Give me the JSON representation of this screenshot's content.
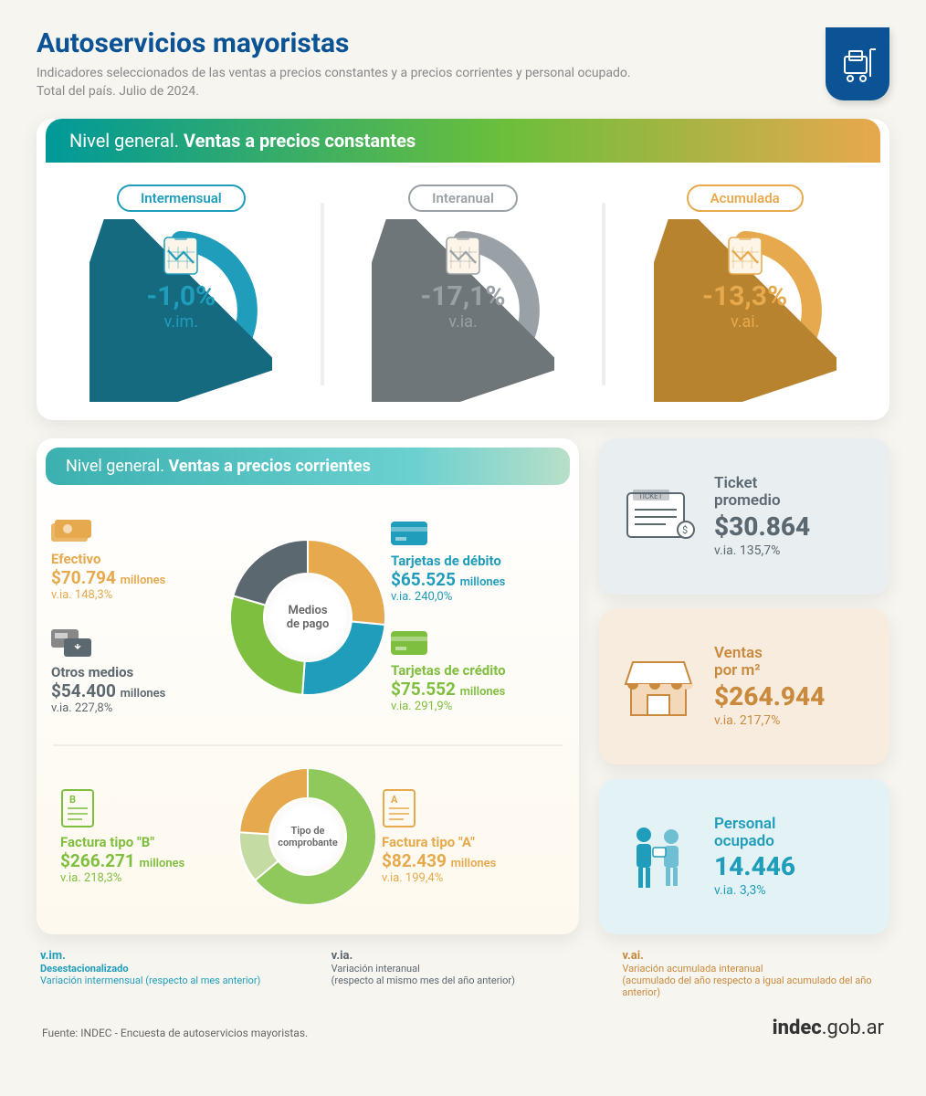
{
  "header": {
    "title": "Autoservicios mayoristas",
    "subtitle1": "Indicadores seleccionados de las ventas a precios constantes y a precios corrientes y personal ocupado.",
    "subtitle2": "Total del país. Julio de 2024.",
    "title_color": "#0b5394"
  },
  "section_constantes": {
    "head_light": "Nivel general. ",
    "head_bold": "Ventas a precios constantes",
    "items": [
      {
        "label": "Intermensual",
        "value": "-1,0%",
        "sub": "v.im.",
        "color": "#1f9dbb",
        "darker": "#156a80"
      },
      {
        "label": "Interanual",
        "value": "-17,1%",
        "sub": "v.ia.",
        "color": "#9aa1a6",
        "darker": "#6f767a"
      },
      {
        "label": "Acumulada",
        "value": "-13,3%",
        "sub": "v.ai.",
        "color": "#e6a94d",
        "darker": "#b8832f"
      }
    ]
  },
  "section_corrientes": {
    "head_light": "Nivel general. ",
    "head_bold": "Ventas a precios corrientes",
    "donut1": {
      "center": "Medios\nde pago",
      "left_top": {
        "name": "Efectivo",
        "val": "$70.794",
        "unit": "millones",
        "via": "v.ia. 148,3%",
        "color": "#e6a94d"
      },
      "left_bottom": {
        "name": "Otros medios",
        "val": "$54.400",
        "unit": "millones",
        "via": "v.ia. 227,8%",
        "color": "#5c6870"
      },
      "right_top": {
        "name": "Tarjetas de débito",
        "val": "$65.525",
        "unit": "millones",
        "via": "v.ia. 240,0%",
        "color": "#1f9dbb"
      },
      "right_bottom": {
        "name": "Tarjetas de crédito",
        "val": "$75.552",
        "unit": "millones",
        "via": "v.ia. 291,9%",
        "color": "#7fbf3f"
      },
      "slices": [
        {
          "color": "#e6a94d",
          "pct": 26.5
        },
        {
          "color": "#1f9dbb",
          "pct": 24.6
        },
        {
          "color": "#7fbf3f",
          "pct": 28.4
        },
        {
          "color": "#5c6870",
          "pct": 20.5
        }
      ]
    },
    "donut2": {
      "center": "Tipo de\ncomprobante",
      "left": {
        "name": "Factura tipo \"B\"",
        "val": "$266.271",
        "unit": "millones",
        "via": "v.ia. 218,3%",
        "color": "#7fbf3f"
      },
      "right": {
        "name": "Factura tipo \"A\"",
        "val": "$82.439",
        "unit": "millones",
        "via": "v.ia. 199,4%",
        "color": "#e6a94d"
      },
      "slices": [
        {
          "color": "#8fc85b",
          "pct": 64
        },
        {
          "color": "#c4dba3",
          "pct": 12
        },
        {
          "color": "#e6a94d",
          "pct": 24
        }
      ]
    }
  },
  "tiles": [
    {
      "label": "Ticket\npromedio",
      "val": "$30.864",
      "via": "v.ia. 135,7%",
      "bg": "#e9eef0",
      "color": "#5c6870",
      "icon": "ticket"
    },
    {
      "label": "Ventas\npor m²",
      "val": "$264.944",
      "via": "v.ia. 217,7%",
      "bg": "#f8ecdf",
      "color": "#c98a3d",
      "icon": "store"
    },
    {
      "label": "Personal\nocupado",
      "val": "14.446",
      "via": "v.ia. 3,3%",
      "bg": "#e3f2f4",
      "color": "#1f9dbb",
      "icon": "people"
    }
  ],
  "legend": {
    "vim_h": "v.im.",
    "vim_b": "Desestacionalizado",
    "vim_t": "Variación intermensual (respecto al mes anterior)",
    "vim_c": "#1f9dbb",
    "via_h": "v.ia.",
    "via_t": "Variación interanual\n(respecto al mismo mes del año anterior)",
    "via_c": "#5c6870",
    "vai_h": "v.ai.",
    "vai_t": "Variación acumulada interanual\n(acumulado del año respecto a igual acumulado del año anterior)",
    "vai_c": "#c98a3d"
  },
  "footer": {
    "source": "Fuente: INDEC - Encuesta de autoservicios mayoristas.",
    "logo_bold": "indec",
    "logo_rest": ".gob.ar"
  }
}
